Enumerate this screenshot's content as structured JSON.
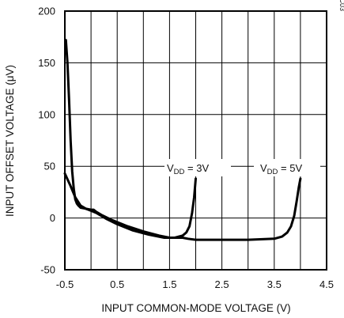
{
  "chart_data": {
    "type": "line",
    "title": "",
    "xlabel": "INPUT COMMON-MODE VOLTAGE (V)",
    "ylabel": "INPUT OFFSET VOLTAGE (μV)",
    "xlim": [
      -0.5,
      4.5
    ],
    "ylim": [
      -50,
      200
    ],
    "x_ticks": [
      "-0.5",
      "0.5",
      "1.5",
      "2.5",
      "3.5",
      "4.5"
    ],
    "y_ticks": [
      "200",
      "150",
      "100",
      "50",
      "0",
      "-50"
    ],
    "grid": true,
    "figure_id": "MAX4249-57 TOC03",
    "series": [
      {
        "name": "VDD = 3V",
        "label_main": "V",
        "label_sub": "DD",
        "label_rest": " = 3V",
        "x": [
          -0.48,
          -0.45,
          -0.42,
          -0.39,
          -0.36,
          -0.33,
          -0.3,
          -0.27,
          -0.24,
          -0.2,
          -0.1,
          0,
          0.1,
          0.2,
          0.3,
          0.5,
          0.8,
          1.1,
          1.4,
          1.6,
          1.75,
          1.82,
          1.88,
          1.93,
          1.97,
          2.0
        ],
        "y": [
          172,
          150,
          115,
          75,
          45,
          28,
          18,
          14,
          12,
          10,
          9,
          7,
          5,
          2,
          -1,
          -6,
          -12,
          -16,
          -19,
          -19,
          -17,
          -14,
          -8,
          5,
          20,
          38
        ]
      },
      {
        "name": "VDD = 5V",
        "label_main": "V",
        "label_sub": "DD",
        "label_rest": " = 5V",
        "x": [
          -0.5,
          -0.4,
          -0.3,
          -0.2,
          -0.1,
          0,
          0.05,
          0.1,
          0.2,
          0.4,
          0.7,
          1.0,
          1.3,
          1.5,
          1.6,
          1.75,
          1.85,
          2.0,
          2.5,
          3.0,
          3.5,
          3.65,
          3.75,
          3.82,
          3.88,
          3.93,
          3.97,
          4.0
        ],
        "y": [
          43,
          32,
          20,
          12,
          9,
          8,
          8,
          6,
          3,
          -2,
          -8,
          -13,
          -17,
          -19,
          -19,
          -19,
          -20,
          -21,
          -21,
          -21,
          -20,
          -18,
          -14,
          -8,
          2,
          17,
          30,
          38
        ]
      }
    ]
  }
}
